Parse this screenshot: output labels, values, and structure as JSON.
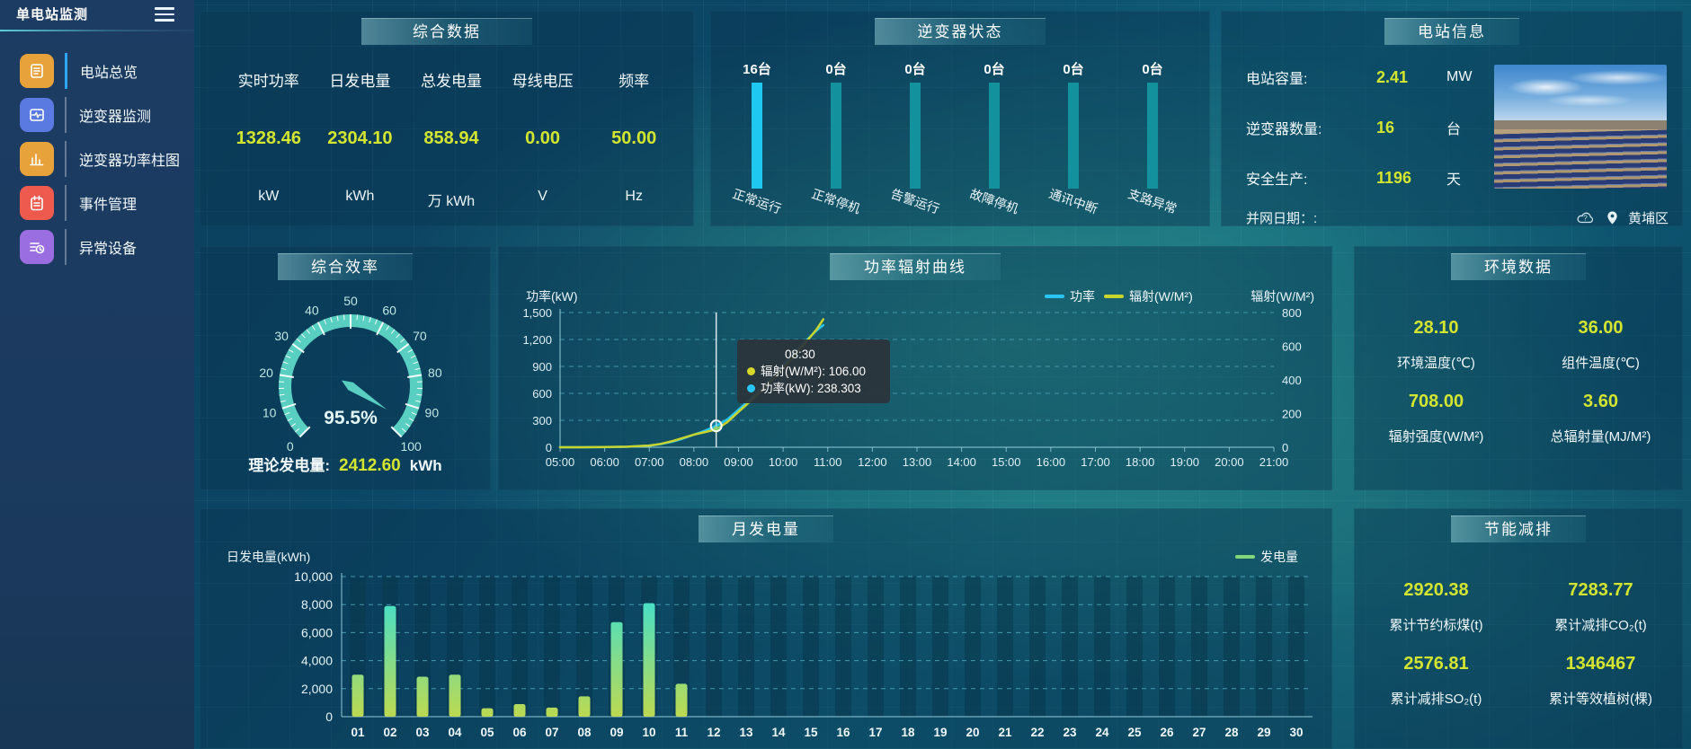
{
  "app_title": "单电站监测",
  "colors": {
    "accent_yellow": "#d4e52f",
    "panel_title_bg": "#3aa0a8",
    "active_nav": "#2ea7f2"
  },
  "sidebar": {
    "items": [
      {
        "label": "电站总览",
        "icon": "report-icon",
        "color": "#e7a23c",
        "active": true
      },
      {
        "label": "逆变器监测",
        "icon": "monitor-icon",
        "color": "#5a7ae2",
        "active": false
      },
      {
        "label": "逆变器功率柱图",
        "icon": "bar-chart-icon",
        "color": "#e7a23c",
        "active": false
      },
      {
        "label": "事件管理",
        "icon": "notebook-icon",
        "color": "#ef5a4e",
        "active": false
      },
      {
        "label": "异常设备",
        "icon": "abnormal-device-icon",
        "color": "#9a6ee0",
        "active": false
      }
    ]
  },
  "summary": {
    "title": "综合数据",
    "stats": [
      {
        "name": "实时功率",
        "value": "1328.46",
        "unit": "kW"
      },
      {
        "name": "日发电量",
        "value": "2304.10",
        "unit": "kWh"
      },
      {
        "name": "总发电量",
        "value": "858.94",
        "unit": "万 kWh"
      },
      {
        "name": "母线电压",
        "value": "0.00",
        "unit": "V"
      },
      {
        "name": "频率",
        "value": "50.00",
        "unit": "Hz"
      }
    ]
  },
  "inverter_status": {
    "title": "逆变器状态"
  },
  "station_info": {
    "title": "电站信息",
    "rows": [
      {
        "label": "电站容量:",
        "value": "2.41",
        "unit": "MW"
      },
      {
        "label": "逆变器数量:",
        "value": "16",
        "unit": "台"
      },
      {
        "label": "安全生产:",
        "value": "1196",
        "unit": "天"
      }
    ],
    "grid_date_label": "并网日期：:",
    "district": "黄埔区"
  },
  "efficiency": {
    "title": "综合效率",
    "theory_label": "理论发电量:",
    "theory_value": "2412.60",
    "theory_unit": "kWh"
  },
  "power_curve": {
    "title": "功率辐射曲线"
  },
  "environment": {
    "title": "环境数据",
    "cells": [
      {
        "value": "28.10",
        "label": "环境温度(℃)"
      },
      {
        "value": "36.00",
        "label": "组件温度(℃)"
      },
      {
        "value": "708.00",
        "label": "辐射强度(W/M²)"
      },
      {
        "value": "3.60",
        "label": "总辐射量(MJ/M²)"
      }
    ]
  },
  "monthly": {
    "title": "月发电量"
  },
  "saving": {
    "title": "节能减排",
    "cells": [
      {
        "value": "2920.38",
        "label": "累计节约标煤(t)"
      },
      {
        "value": "7283.77",
        "label": "累计减排CO₂(t)"
      },
      {
        "value": "2576.81",
        "label": "累计减排SO₂(t)"
      },
      {
        "value": "1346467",
        "label": "累计等效植树(棵)"
      }
    ]
  },
  "chart_data": [
    {
      "id": "inverter_status_bars",
      "type": "bar",
      "title": "逆变器状态",
      "categories": [
        "正常运行",
        "正常停机",
        "告警运行",
        "故障停机",
        "通讯中断",
        "支路异常"
      ],
      "values": [
        16,
        0,
        0,
        0,
        0,
        0
      ],
      "value_labels": [
        "16台",
        "0台",
        "0台",
        "0台",
        "0台",
        "0台"
      ],
      "colors": {
        "active": "#1fc8f0",
        "inactive": "#13929e"
      }
    },
    {
      "id": "efficiency_gauge",
      "type": "gauge",
      "min": 0,
      "max": 100,
      "value": 95.5,
      "display": "95.5%",
      "tick_labels": [
        0,
        10,
        20,
        30,
        40,
        50,
        60,
        70,
        80,
        90,
        100
      ],
      "color": "#58cfc0"
    },
    {
      "id": "power_radiation_curve",
      "type": "line",
      "title": "功率辐射曲线",
      "x_axis": {
        "min": 5,
        "max": 21,
        "tick_labels": [
          "05:00",
          "06:00",
          "07:00",
          "08:00",
          "09:00",
          "10:00",
          "11:00",
          "12:00",
          "13:00",
          "14:00",
          "15:00",
          "16:00",
          "17:00",
          "18:00",
          "19:00",
          "20:00",
          "21:00"
        ]
      },
      "left_axis": {
        "name": "功率(kW)",
        "max": 1500,
        "tick_labels": [
          "1,500",
          "1,200",
          "900",
          "600",
          "300",
          "0"
        ]
      },
      "right_axis": {
        "name": "辐射(W/M²)",
        "max": 800,
        "tick_labels": [
          "800",
          "600",
          "400",
          "200",
          "0"
        ]
      },
      "legend": [
        {
          "label": "功率",
          "color": "#29c5f5"
        },
        {
          "label": "辐射(W/M²)",
          "color": "#c9d42c"
        }
      ],
      "series": [
        {
          "name": "功率",
          "axis": "left",
          "color": "#29c5f5",
          "x": [
            5,
            5.5,
            6,
            6.5,
            7,
            7.25,
            7.5,
            7.75,
            8,
            8.25,
            8.5,
            8.75,
            9,
            9.25,
            9.5,
            9.75,
            10,
            10.25,
            10.5,
            10.75,
            10.9
          ],
          "y": [
            0,
            0,
            1,
            5,
            18,
            35,
            60,
            95,
            140,
            185,
            238.3,
            310,
            420,
            530,
            650,
            780,
            920,
            1050,
            1180,
            1300,
            1360
          ]
        },
        {
          "name": "辐射(W/M²)",
          "axis": "right",
          "color": "#c9d42c",
          "x": [
            5,
            5.5,
            6,
            6.5,
            7,
            7.25,
            7.5,
            7.75,
            8,
            8.25,
            8.5,
            8.75,
            9,
            9.25,
            9.5,
            9.75,
            10,
            10.25,
            10.5,
            10.75,
            10.9
          ],
          "y": [
            0,
            0,
            1,
            3,
            10,
            20,
            35,
            55,
            75,
            90,
            106,
            150,
            210,
            270,
            335,
            400,
            470,
            545,
            620,
            700,
            760
          ]
        }
      ],
      "hover": {
        "x": 8.5,
        "time": "08:30",
        "rows": [
          {
            "label": "辐射(W/M²)",
            "value": "106.00",
            "color": "#d8d82c"
          },
          {
            "label": "功率(kW)",
            "value": "238.303",
            "color": "#29c5f5"
          }
        ]
      }
    },
    {
      "id": "monthly_generation",
      "type": "bar",
      "title": "月发电量",
      "ylabel": "日发电量(kWh)",
      "ylim": [
        0,
        10000
      ],
      "ytick_labels": [
        "10,000",
        "8,000",
        "6,000",
        "4,000",
        "2,000",
        "0"
      ],
      "categories": [
        "01",
        "02",
        "03",
        "04",
        "05",
        "06",
        "07",
        "08",
        "09",
        "10",
        "11",
        "12",
        "13",
        "14",
        "15",
        "16",
        "17",
        "18",
        "19",
        "20",
        "21",
        "22",
        "23",
        "24",
        "25",
        "26",
        "27",
        "28",
        "29",
        "30"
      ],
      "values": [
        3000,
        7900,
        2850,
        3000,
        600,
        900,
        650,
        1450,
        6750,
        8100,
        2350,
        0,
        0,
        0,
        0,
        0,
        0,
        0,
        0,
        0,
        0,
        0,
        0,
        0,
        0,
        0,
        0,
        0,
        0,
        0
      ],
      "legend": [
        {
          "label": "发电量",
          "color": "#82d878"
        }
      ],
      "bar_gradient": [
        "#2fe0df",
        "#bcd952"
      ]
    }
  ]
}
